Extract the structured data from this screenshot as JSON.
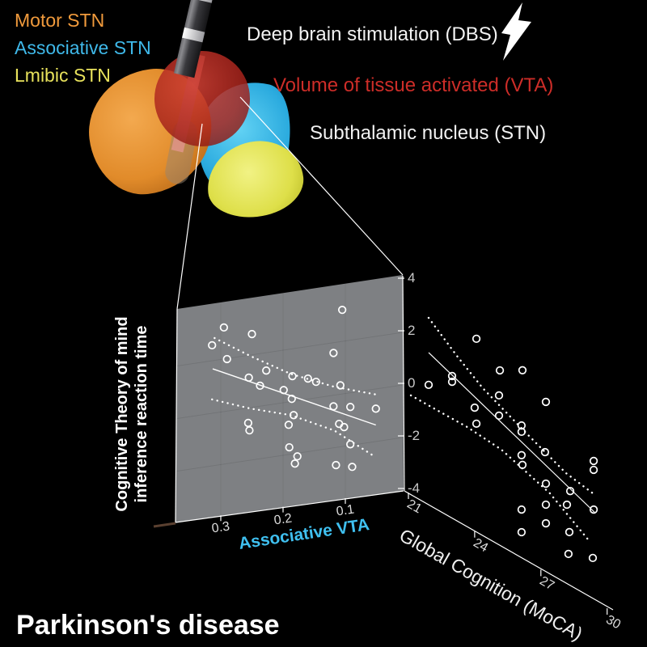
{
  "legend": {
    "items": [
      {
        "label": "Motor STN",
        "color": "#f09a3c"
      },
      {
        "label": "Associative STN",
        "color": "#3fb9ea"
      },
      {
        "label": "Lmibic STN",
        "color": "#e8e25c"
      }
    ]
  },
  "header": {
    "dbs_label": "Deep brain stimulation (DBS)",
    "vta_label": "Volume of tissue activated (VTA)",
    "vta_color": "#cd2d28",
    "stn_label": "Subthalamic nucleus (STN)",
    "bolt_icon": "lightning-bolt"
  },
  "footer": {
    "disease_label": "Parkinson's disease"
  },
  "colors": {
    "background": "#000000",
    "panel": "#7e8083",
    "marker": "#ffffff",
    "motor_stn": "#f09a3c",
    "associative_stn": "#3fb9ea",
    "limbic_stn": "#e8e25c",
    "vta_sphere": "#b02a23",
    "vta_axis_label": "#3fc0f0"
  },
  "chart_data": [
    {
      "type": "scatter",
      "title": "Associative VTA vs Theory-of-mind reaction time",
      "xlabel": "Associative VTA",
      "xlabel_color": "#3fc0f0",
      "ylabel": "Cognitive Theory of mind inference reaction time",
      "ylabel_lines": [
        "Cognitive Theory of mind",
        "inference reaction time"
      ],
      "x_axis_reversed": true,
      "x_ticks": [
        0.3,
        0.2,
        0.1
      ],
      "y_ticks": [
        4,
        2,
        0,
        -2,
        -4
      ],
      "xlim": [
        0.37,
        0.03
      ],
      "ylim": [
        -4,
        4
      ],
      "marker": "open-circle",
      "legend_position": "none",
      "grid": "faint",
      "points": [
        [
          0.295,
          3.2
        ],
        [
          0.25,
          2.79
        ],
        [
          0.314,
          2.59
        ],
        [
          0.105,
          3.2
        ],
        [
          0.119,
          1.61
        ],
        [
          0.29,
          1.98
        ],
        [
          0.227,
          1.32
        ],
        [
          0.255,
          1.15
        ],
        [
          0.185,
          0.96
        ],
        [
          0.16,
          0.78
        ],
        [
          0.147,
          0.61
        ],
        [
          0.237,
          0.78
        ],
        [
          0.199,
          0.48
        ],
        [
          0.108,
          0.34
        ],
        [
          0.186,
          0.1
        ],
        [
          0.051,
          -0.75
        ],
        [
          0.092,
          -0.54
        ],
        [
          0.119,
          -0.42
        ],
        [
          0.256,
          -0.57
        ],
        [
          0.254,
          -0.86
        ],
        [
          0.183,
          -0.53
        ],
        [
          0.191,
          -0.87
        ],
        [
          0.19,
          -1.73
        ],
        [
          0.177,
          -2.12
        ],
        [
          0.181,
          -2.38
        ],
        [
          0.11,
          -1.12
        ],
        [
          0.102,
          -1.27
        ],
        [
          0.092,
          -1.96
        ],
        [
          0.115,
          -2.67
        ],
        [
          0.089,
          -2.83
        ]
      ],
      "fit_line": [
        [
          0.313,
          1.69
        ],
        [
          0.051,
          -1.37
        ]
      ],
      "ci_upper": [
        [
          0.31,
          2.85
        ],
        [
          0.253,
          1.97
        ],
        [
          0.188,
          1.06
        ],
        [
          0.118,
          0.32
        ],
        [
          0.047,
          -0.24
        ]
      ],
      "ci_lower": [
        [
          0.314,
          0.53
        ],
        [
          0.253,
          -0.03
        ],
        [
          0.188,
          -0.51
        ],
        [
          0.118,
          -1.34
        ],
        [
          0.051,
          -2.6
        ]
      ]
    },
    {
      "type": "scatter",
      "title": "Global Cognition vs Theory-of-mind reaction time",
      "xlabel": "Global Cognition (MoCA)",
      "x_ticks": [
        21,
        24,
        27,
        30
      ],
      "y_ticks": [
        4,
        2,
        0,
        -2,
        -4
      ],
      "xlim": [
        21,
        30
      ],
      "ylim": [
        -4,
        4
      ],
      "marker": "open-circle",
      "legend_position": "none",
      "grid": "off",
      "points": [
        [
          24.25,
          3.41
        ],
        [
          25.32,
          2.72
        ],
        [
          26.35,
          3.22
        ],
        [
          23.14,
          1.46
        ],
        [
          23.14,
          1.24
        ],
        [
          22.07,
          0.61
        ],
        [
          25.28,
          1.75
        ],
        [
          27.42,
          2.53
        ],
        [
          24.17,
          0.75
        ],
        [
          25.28,
          0.98
        ],
        [
          24.25,
          0.18
        ],
        [
          26.31,
          1.1
        ],
        [
          26.31,
          0.86
        ],
        [
          27.38,
          0.6
        ],
        [
          26.31,
          -0.03
        ],
        [
          26.35,
          -0.38
        ],
        [
          29.6,
          1.33
        ],
        [
          29.6,
          0.99
        ],
        [
          27.42,
          -0.58
        ],
        [
          28.53,
          -0.33
        ],
        [
          27.42,
          -1.38
        ],
        [
          28.38,
          -0.92
        ],
        [
          29.6,
          -0.52
        ],
        [
          26.31,
          -2.1
        ],
        [
          27.42,
          -2.09
        ],
        [
          26.31,
          -2.96
        ],
        [
          28.49,
          -1.91
        ],
        [
          28.45,
          -2.76
        ],
        [
          29.56,
          -2.38
        ]
      ],
      "fit_line": [
        [
          22.07,
          1.84
        ],
        [
          29.63,
          -0.6
        ]
      ],
      "ci_upper": [
        [
          22.07,
          3.16
        ],
        [
          23.36,
          2.33
        ],
        [
          24.54,
          1.67
        ],
        [
          26.5,
          0.92
        ],
        [
          28.34,
          0.26
        ],
        [
          29.56,
          0.08
        ]
      ],
      "ci_lower": [
        [
          21.26,
          -0.18
        ],
        [
          22.44,
          -0.17
        ],
        [
          23.84,
          -0.15
        ],
        [
          25.39,
          -0.26
        ],
        [
          27.6,
          -0.86
        ],
        [
          29.34,
          -1.78
        ]
      ]
    }
  ]
}
